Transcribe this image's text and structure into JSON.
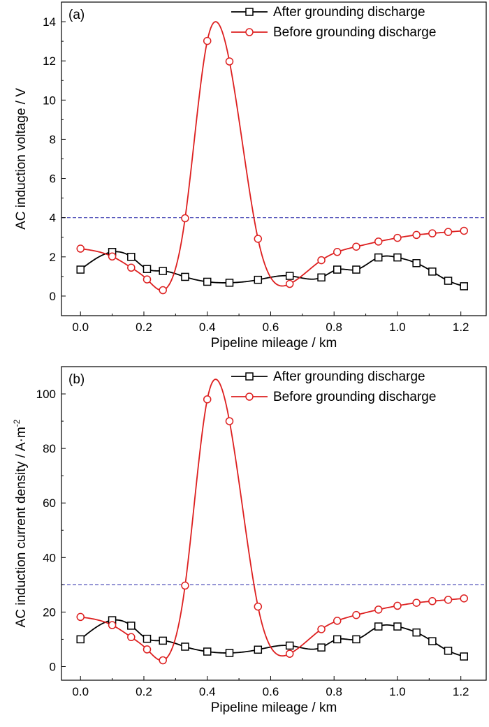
{
  "chart_data": [
    {
      "type": "line",
      "panel_label": "(a)",
      "xlabel": "Pipeline mileage / km",
      "ylabel": "AC induction voltage / V",
      "ylabel_superscript": "",
      "xlim": [
        -0.06,
        1.28
      ],
      "ylim": [
        -1,
        15
      ],
      "xticks": [
        0.0,
        0.2,
        0.4,
        0.6,
        0.8,
        1.0,
        1.2
      ],
      "xtick_labels": [
        "0.0",
        "0.2",
        "0.4",
        "0.6",
        "0.8",
        "1.0",
        "1.2"
      ],
      "yticks": [
        0,
        2,
        4,
        6,
        8,
        10,
        12,
        14
      ],
      "ytick_labels": [
        "0",
        "2",
        "4",
        "6",
        "8",
        "10",
        "12",
        "14"
      ],
      "reference_line": 4,
      "legend_position": "top-right",
      "series": [
        {
          "name": "After grounding discharge",
          "marker": "square",
          "color": "#000000",
          "x": [
            0.0,
            0.1,
            0.16,
            0.21,
            0.26,
            0.33,
            0.4,
            0.47,
            0.56,
            0.66,
            0.76,
            0.81,
            0.87,
            0.94,
            1.0,
            1.06,
            1.11,
            1.16,
            1.21
          ],
          "y": [
            1.35,
            2.25,
            2.0,
            1.38,
            1.28,
            0.98,
            0.73,
            0.68,
            0.83,
            1.03,
            0.95,
            1.35,
            1.35,
            1.97,
            1.97,
            1.68,
            1.25,
            0.78,
            0.5
          ]
        },
        {
          "name": "Before grounding discharge",
          "marker": "circle",
          "color": "#dd1f1f",
          "x": [
            0.0,
            0.1,
            0.16,
            0.21,
            0.26,
            0.33,
            0.4,
            0.47,
            0.56,
            0.66,
            0.76,
            0.81,
            0.87,
            0.94,
            1.0,
            1.06,
            1.11,
            1.16,
            1.21
          ],
          "y": [
            2.42,
            2.02,
            1.45,
            0.85,
            0.3,
            3.97,
            13.02,
            11.97,
            2.92,
            0.62,
            1.83,
            2.25,
            2.52,
            2.78,
            2.97,
            3.12,
            3.2,
            3.27,
            3.33
          ]
        }
      ]
    },
    {
      "type": "line",
      "panel_label": "(b)",
      "xlabel": "Pipeline mileage / km",
      "ylabel": "AC induction current density / A·m",
      "ylabel_superscript": "-2",
      "xlim": [
        -0.06,
        1.28
      ],
      "ylim": [
        -5,
        110
      ],
      "xticks": [
        0.0,
        0.2,
        0.4,
        0.6,
        0.8,
        1.0,
        1.2
      ],
      "xtick_labels": [
        "0.0",
        "0.2",
        "0.4",
        "0.6",
        "0.8",
        "1.0",
        "1.2"
      ],
      "yticks": [
        0,
        20,
        40,
        60,
        80,
        100
      ],
      "ytick_labels": [
        "0",
        "20",
        "40",
        "60",
        "80",
        "100"
      ],
      "reference_line": 30,
      "legend_position": "top-right",
      "series": [
        {
          "name": "After grounding discharge",
          "marker": "square",
          "color": "#000000",
          "x": [
            0.0,
            0.1,
            0.16,
            0.21,
            0.26,
            0.33,
            0.4,
            0.47,
            0.56,
            0.66,
            0.76,
            0.81,
            0.87,
            0.94,
            1.0,
            1.06,
            1.11,
            1.16,
            1.21
          ],
          "y": [
            10.0,
            17.0,
            15.0,
            10.2,
            9.5,
            7.3,
            5.5,
            5.0,
            6.2,
            7.7,
            7.0,
            10.0,
            10.0,
            14.7,
            14.7,
            12.5,
            9.3,
            5.8,
            3.7
          ]
        },
        {
          "name": "Before grounding discharge",
          "marker": "circle",
          "color": "#dd1f1f",
          "x": [
            0.0,
            0.1,
            0.16,
            0.21,
            0.26,
            0.33,
            0.4,
            0.47,
            0.56,
            0.66,
            0.76,
            0.81,
            0.87,
            0.94,
            1.0,
            1.06,
            1.11,
            1.16,
            1.21
          ],
          "y": [
            18.2,
            15.2,
            10.8,
            6.3,
            2.3,
            29.7,
            98.0,
            90.0,
            22.0,
            4.7,
            13.7,
            16.8,
            18.9,
            20.9,
            22.3,
            23.4,
            24.0,
            24.5,
            25.0
          ]
        }
      ]
    }
  ]
}
